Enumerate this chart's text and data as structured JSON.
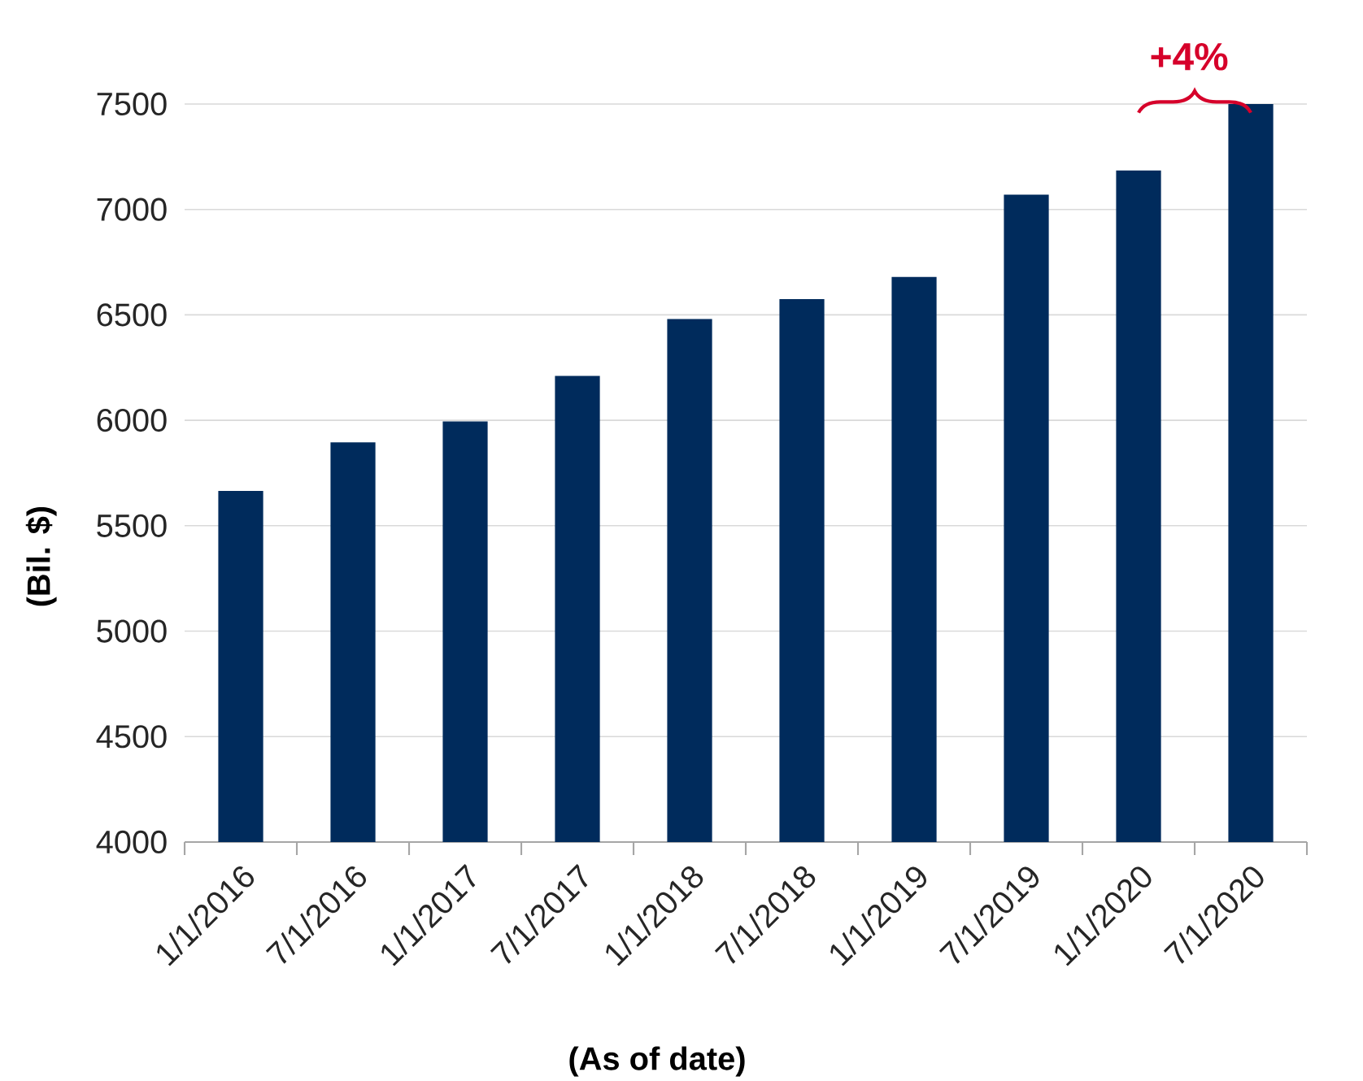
{
  "chart_data": {
    "type": "bar",
    "categories": [
      "1/1/2016",
      "7/1/2016",
      "1/1/2017",
      "7/1/2017",
      "1/1/2018",
      "7/1/2018",
      "1/1/2019",
      "7/1/2019",
      "1/1/2020",
      "7/1/2020"
    ],
    "values": [
      5665,
      5895,
      5995,
      6210,
      6480,
      6575,
      6680,
      7070,
      7185,
      7500
    ],
    "color": "#002b5c",
    "ylim": [
      4000,
      7500
    ],
    "yticks": [
      4000,
      4500,
      5000,
      5500,
      6000,
      6500,
      7000,
      7500
    ],
    "grid": "y",
    "xlabel": "(As of date)",
    "ylabel": "(Bil. $)",
    "annotations": [
      "+4%"
    ]
  }
}
